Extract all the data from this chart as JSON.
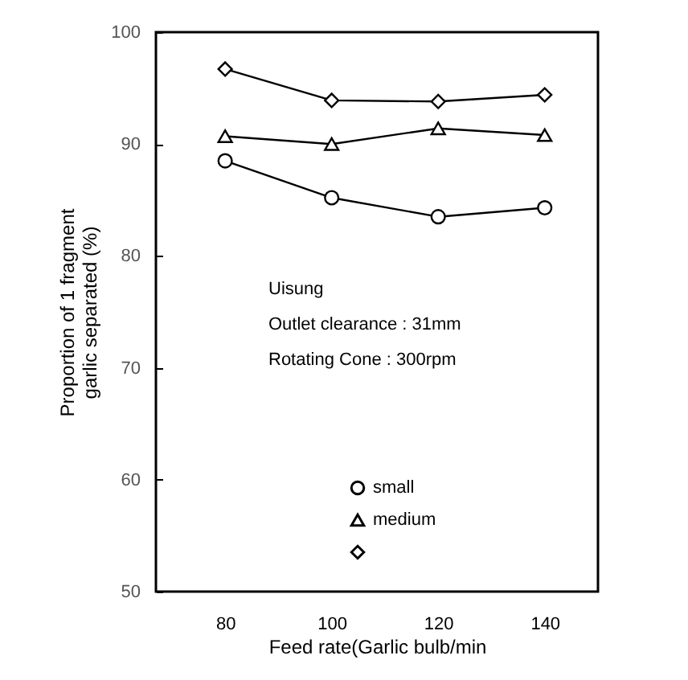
{
  "chart_data": {
    "type": "line",
    "xlabel": "Feed rate(Garlic bulb/min",
    "ylabel": "Proportion of 1 fragment garlic separated (%)",
    "x": [
      80,
      100,
      120,
      140
    ],
    "xlim": [
      67,
      150
    ],
    "xticks": [
      80,
      100,
      120,
      140
    ],
    "ylim": [
      50,
      100
    ],
    "yticks": [
      50,
      60,
      70,
      80,
      90,
      100
    ],
    "annotations": [
      "Uisung",
      "Outlet clearance : 31mm",
      "Rotating Cone :  300rpm"
    ],
    "legend": "bottom",
    "grid": false,
    "series": [
      {
        "name": "small",
        "color": "#000000",
        "marker": "circle",
        "values": [
          88.5,
          85.2,
          83.5,
          84.3
        ]
      },
      {
        "name": "medium",
        "color": "#000000",
        "marker": "triangle",
        "values": [
          90.7,
          90.0,
          91.4,
          90.8
        ]
      },
      {
        "color": "#000000",
        "marker": "diamond",
        "values": [
          96.7,
          93.9,
          93.8,
          94.4
        ]
      }
    ]
  }
}
